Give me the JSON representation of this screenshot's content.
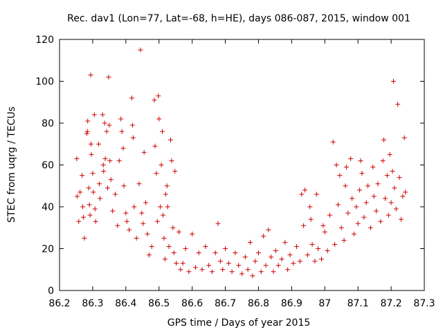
{
  "chart_data": {
    "type": "scatter",
    "title": "Rec. dav1 (Lon=77, Lat=-68, h=HE), days 086-087, 2015, window 001",
    "xlabel": "GPS time / Days of year 2015",
    "ylabel": "STEC from uqrg / TECUs",
    "xlim": [
      86.2,
      87.3
    ],
    "ylim": [
      0,
      120
    ],
    "xticks": [
      86.2,
      86.3,
      86.4,
      86.5,
      86.6,
      86.7,
      86.8,
      86.9,
      87.0,
      87.1,
      87.2,
      87.3
    ],
    "xtick_labels": [
      "86.2",
      "86.3",
      "86.4",
      "86.5",
      "86.6",
      "86.7",
      "86.8",
      "86.9",
      "87",
      "87.1",
      "87.2",
      "87.3"
    ],
    "yticks": [
      0,
      20,
      40,
      60,
      80,
      100,
      120
    ],
    "ytick_labels": [
      "0",
      "20",
      "40",
      "60",
      "80",
      "100",
      "120"
    ],
    "grid": false,
    "marker": "+",
    "marker_color": "#cc0000",
    "series": [
      {
        "points": [
          [
            86.252,
            63.0
          ],
          [
            86.253,
            45.0
          ],
          [
            86.258,
            33.0
          ],
          [
            86.262,
            47.0
          ],
          [
            86.268,
            55.0
          ],
          [
            86.27,
            40.0
          ],
          [
            86.272,
            35.0
          ],
          [
            86.275,
            25.0
          ],
          [
            86.282,
            75.0
          ],
          [
            86.284,
            76.0
          ],
          [
            86.285,
            81.0
          ],
          [
            86.288,
            49.0
          ],
          [
            86.29,
            41.0
          ],
          [
            86.292,
            36.0
          ],
          [
            86.294,
            103.0
          ],
          [
            86.295,
            70.0
          ],
          [
            86.296,
            65.0
          ],
          [
            86.3,
            56.0
          ],
          [
            86.302,
            47.0
          ],
          [
            86.305,
            84.0
          ],
          [
            86.307,
            39.0
          ],
          [
            86.309,
            33.0
          ],
          [
            86.318,
            70.0
          ],
          [
            86.32,
            51.0
          ],
          [
            86.322,
            44.0
          ],
          [
            86.33,
            84.0
          ],
          [
            86.332,
            60.0
          ],
          [
            86.333,
            57.0
          ],
          [
            86.336,
            80.0
          ],
          [
            86.338,
            63.0
          ],
          [
            86.342,
            76.0
          ],
          [
            86.345,
            49.0
          ],
          [
            86.348,
            102.0
          ],
          [
            86.35,
            79.0
          ],
          [
            86.352,
            62.0
          ],
          [
            86.355,
            53.0
          ],
          [
            86.36,
            38.0
          ],
          [
            86.368,
            46.0
          ],
          [
            86.375,
            31.0
          ],
          [
            86.38,
            62.0
          ],
          [
            86.385,
            82.0
          ],
          [
            86.388,
            76.0
          ],
          [
            86.392,
            68.0
          ],
          [
            86.394,
            50.0
          ],
          [
            86.4,
            37.0
          ],
          [
            86.403,
            33.0
          ],
          [
            86.41,
            29.0
          ],
          [
            86.418,
            92.0
          ],
          [
            86.42,
            79.0
          ],
          [
            86.422,
            73.0
          ],
          [
            86.425,
            40.0
          ],
          [
            86.432,
            25.0
          ],
          [
            86.44,
            51.0
          ],
          [
            86.444,
            115.0
          ],
          [
            86.448,
            37.0
          ],
          [
            86.452,
            32.0
          ],
          [
            86.455,
            66.0
          ],
          [
            86.46,
            42.0
          ],
          [
            86.465,
            27.0
          ],
          [
            86.47,
            17.0
          ],
          [
            86.478,
            21.0
          ],
          [
            86.486,
            91.0
          ],
          [
            86.488,
            69.0
          ],
          [
            86.492,
            56.0
          ],
          [
            86.495,
            33.0
          ],
          [
            86.498,
            93.0
          ],
          [
            86.5,
            82.0
          ],
          [
            86.504,
            40.0
          ],
          [
            86.507,
            60.0
          ],
          [
            86.51,
            76.0
          ],
          [
            86.512,
            36.0
          ],
          [
            86.515,
            25.0
          ],
          [
            86.518,
            15.0
          ],
          [
            86.52,
            46.0
          ],
          [
            86.524,
            50.0
          ],
          [
            86.526,
            40.0
          ],
          [
            86.53,
            21.0
          ],
          [
            86.535,
            72.0
          ],
          [
            86.538,
            62.0
          ],
          [
            86.542,
            30.0
          ],
          [
            86.545,
            18.0
          ],
          [
            86.548,
            57.0
          ],
          [
            86.552,
            13.0
          ],
          [
            86.56,
            28.0
          ],
          [
            86.565,
            10.0
          ],
          [
            86.572,
            13.0
          ],
          [
            86.58,
            20.0
          ],
          [
            86.59,
            9.0
          ],
          [
            86.6,
            27.0
          ],
          [
            86.61,
            11.0
          ],
          [
            86.62,
            18.0
          ],
          [
            86.63,
            10.0
          ],
          [
            86.64,
            21.0
          ],
          [
            86.65,
            12.0
          ],
          [
            86.66,
            9.0
          ],
          [
            86.67,
            18.0
          ],
          [
            86.678,
            32.0
          ],
          [
            86.685,
            14.0
          ],
          [
            86.692,
            10.0
          ],
          [
            86.7,
            20.0
          ],
          [
            86.71,
            13.0
          ],
          [
            86.72,
            9.0
          ],
          [
            86.73,
            18.0
          ],
          [
            86.74,
            12.0
          ],
          [
            86.75,
            8.0
          ],
          [
            86.76,
            16.0
          ],
          [
            86.768,
            10.0
          ],
          [
            86.775,
            23.0
          ],
          [
            86.782,
            7.0
          ],
          [
            86.79,
            14.0
          ],
          [
            86.8,
            18.0
          ],
          [
            86.808,
            9.0
          ],
          [
            86.815,
            26.0
          ],
          [
            86.822,
            12.0
          ],
          [
            86.83,
            29.0
          ],
          [
            86.838,
            16.0
          ],
          [
            86.845,
            9.0
          ],
          [
            86.852,
            19.0
          ],
          [
            86.86,
            12.0
          ],
          [
            86.87,
            15.0
          ],
          [
            86.88,
            23.0
          ],
          [
            86.888,
            10.0
          ],
          [
            86.895,
            17.0
          ],
          [
            86.905,
            13.0
          ],
          [
            86.915,
            21.0
          ],
          [
            86.925,
            14.0
          ],
          [
            86.93,
            46.0
          ],
          [
            86.936,
            31.0
          ],
          [
            86.94,
            48.0
          ],
          [
            86.948,
            17.0
          ],
          [
            86.955,
            40.0
          ],
          [
            86.958,
            34.0
          ],
          [
            86.962,
            22.0
          ],
          [
            86.97,
            14.0
          ],
          [
            86.975,
            46.0
          ],
          [
            86.98,
            20.0
          ],
          [
            86.99,
            15.0
          ],
          [
            86.995,
            31.0
          ],
          [
            87.0,
            28.0
          ],
          [
            87.008,
            19.0
          ],
          [
            87.015,
            36.0
          ],
          [
            87.025,
            71.0
          ],
          [
            87.03,
            22.0
          ],
          [
            87.035,
            60.0
          ],
          [
            87.04,
            41.0
          ],
          [
            87.045,
            55.0
          ],
          [
            87.05,
            30.0
          ],
          [
            87.058,
            24.0
          ],
          [
            87.062,
            50.0
          ],
          [
            87.065,
            59.0
          ],
          [
            87.07,
            37.0
          ],
          [
            87.078,
            63.0
          ],
          [
            87.082,
            44.0
          ],
          [
            87.088,
            27.0
          ],
          [
            87.095,
            40.0
          ],
          [
            87.1,
            32.0
          ],
          [
            87.105,
            48.0
          ],
          [
            87.108,
            62.0
          ],
          [
            87.112,
            56.0
          ],
          [
            87.118,
            35.0
          ],
          [
            87.125,
            42.0
          ],
          [
            87.13,
            50.0
          ],
          [
            87.138,
            30.0
          ],
          [
            87.145,
            59.0
          ],
          [
            87.148,
            45.0
          ],
          [
            87.155,
            38.0
          ],
          [
            87.16,
            51.0
          ],
          [
            87.168,
            33.0
          ],
          [
            87.175,
            62.0
          ],
          [
            87.178,
            72.0
          ],
          [
            87.182,
            44.0
          ],
          [
            87.188,
            55.0
          ],
          [
            87.192,
            36.0
          ],
          [
            87.196,
            65.0
          ],
          [
            87.2,
            42.0
          ],
          [
            87.204,
            57.0
          ],
          [
            87.207,
            100.0
          ],
          [
            87.21,
            49.0
          ],
          [
            87.215,
            39.0
          ],
          [
            87.22,
            89.0
          ],
          [
            87.225,
            54.0
          ],
          [
            87.23,
            34.0
          ],
          [
            87.235,
            45.0
          ],
          [
            87.24,
            73.0
          ],
          [
            87.243,
            47.0
          ]
        ]
      }
    ]
  }
}
